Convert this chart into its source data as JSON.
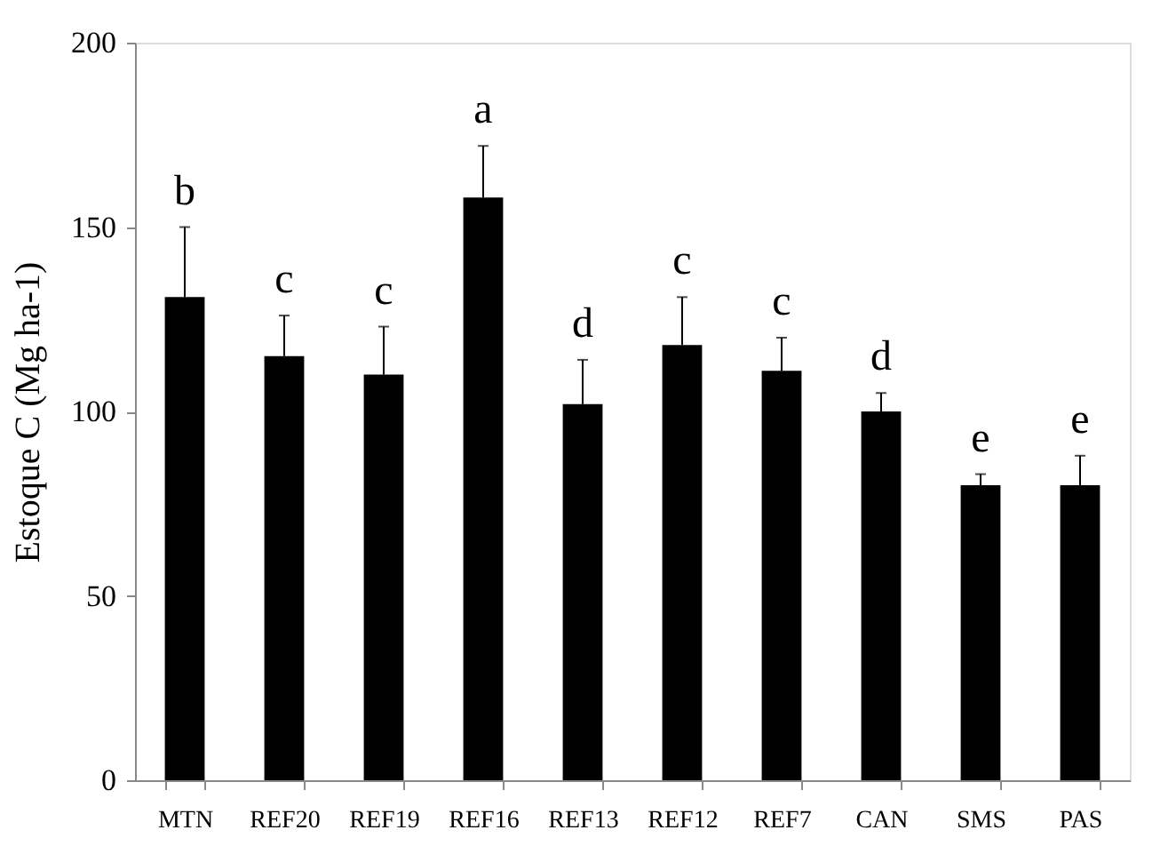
{
  "chart_data": {
    "type": "bar",
    "ylabel": "Estoque C (Mg ha-1)",
    "categories": [
      "MTN",
      "REF20",
      "REF19",
      "REF16",
      "REF13",
      "REF12",
      "REF7",
      "CAN",
      "SMS",
      "PAS"
    ],
    "values": [
      131,
      115,
      110,
      158,
      102,
      118,
      111,
      100,
      80,
      80
    ],
    "errors": [
      [
        131,
        150
      ],
      [
        115,
        126
      ],
      [
        110,
        123
      ],
      [
        158,
        172
      ],
      [
        102,
        114
      ],
      [
        118,
        131
      ],
      [
        111,
        120
      ],
      [
        100,
        105
      ],
      [
        80,
        83
      ],
      [
        80,
        88
      ]
    ],
    "color": "#000000",
    "ylim": [
      0,
      200
    ],
    "yticks": [
      0,
      50,
      100,
      150,
      200
    ],
    "grid": false,
    "annotations": [
      "b",
      "c",
      "c",
      "a",
      "d",
      "c",
      "c",
      "d",
      "e",
      "e"
    ]
  }
}
